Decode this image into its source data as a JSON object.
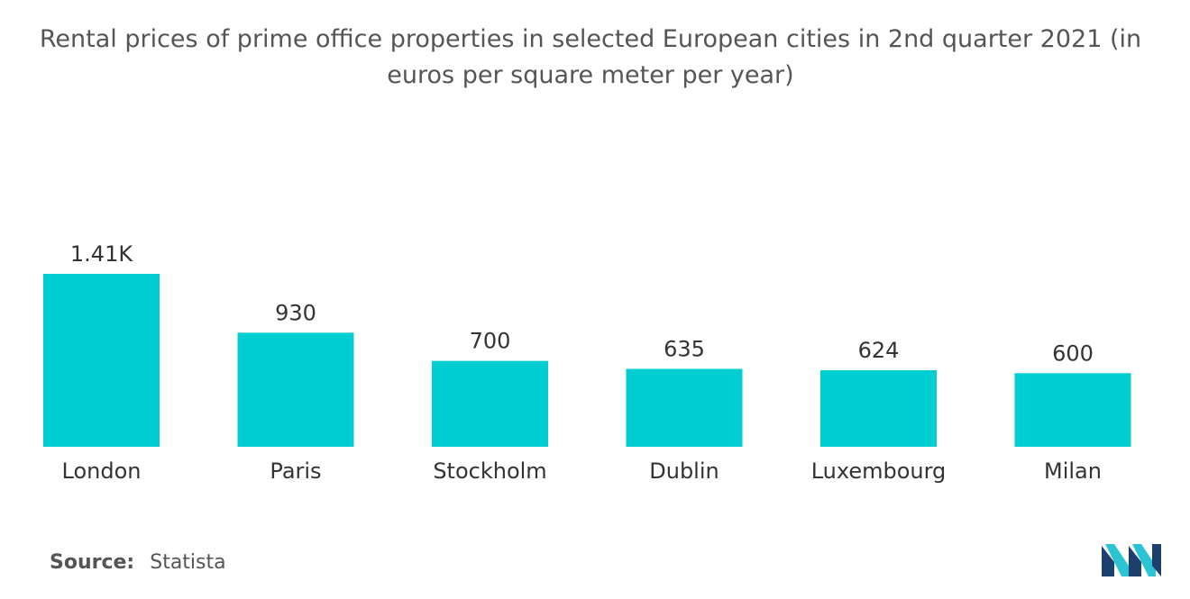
{
  "title": "Rental prices of prime office properties in selected European cities in 2nd quarter 2021 (in euros per square meter per year)",
  "source": {
    "label": "Source:",
    "value": "Statista"
  },
  "logo": {
    "icon": "mordor-intelligence-logo-icon",
    "colors": [
      "#1d3f6e",
      "#2cc4d4"
    ]
  },
  "colors": {
    "bar": "#00ced1",
    "text": "#333333",
    "title": "#555555"
  },
  "chart_data": {
    "type": "bar",
    "title": "Rental prices of prime office properties in selected European cities in 2nd quarter 2021 (in euros per square meter per year)",
    "xlabel": "",
    "ylabel": "",
    "categories": [
      "London",
      "Paris",
      "Stockholm",
      "Dublin",
      "Luxembourg",
      "Milan"
    ],
    "values": [
      1410,
      930,
      700,
      635,
      624,
      600
    ],
    "data_labels": [
      "1.41K",
      "930",
      "700",
      "635",
      "624",
      "600"
    ],
    "ylim": [
      0,
      1410
    ],
    "grid": false,
    "legend": "none"
  }
}
